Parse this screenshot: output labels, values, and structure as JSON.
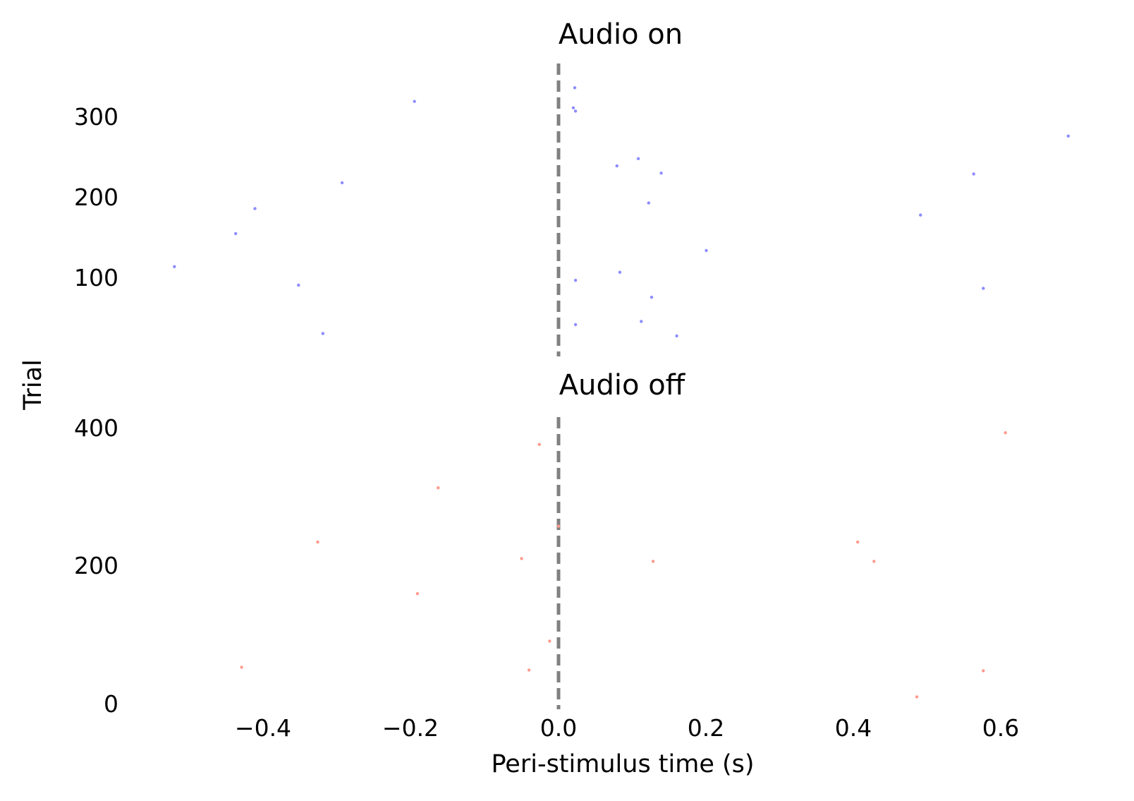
{
  "colors": {
    "audio_on": "#8c8cff",
    "audio_off": "#ff9a8c",
    "stimulus_line": "#808080"
  },
  "chart_data": [
    {
      "type": "scatter",
      "title": "Audio on",
      "xlabel": "",
      "ylabel": "",
      "xlim": [
        -0.55,
        0.72
      ],
      "ylim": [
        0,
        345
      ],
      "yticks": [
        "100",
        "200",
        "300"
      ],
      "grid": false,
      "vline_x": 0.0,
      "points": [
        {
          "x": 0.022,
          "y": 336
        },
        {
          "x": -0.195,
          "y": 319
        },
        {
          "x": 0.02,
          "y": 311
        },
        {
          "x": 0.023,
          "y": 307
        },
        {
          "x": 0.69,
          "y": 276
        },
        {
          "x": 0.108,
          "y": 248
        },
        {
          "x": 0.079,
          "y": 239
        },
        {
          "x": 0.139,
          "y": 230
        },
        {
          "x": 0.562,
          "y": 229
        },
        {
          "x": -0.293,
          "y": 218
        },
        {
          "x": 0.122,
          "y": 193
        },
        {
          "x": -0.411,
          "y": 186
        },
        {
          "x": 0.49,
          "y": 178
        },
        {
          "x": -0.437,
          "y": 155
        },
        {
          "x": 0.2,
          "y": 134
        },
        {
          "x": -0.52,
          "y": 114
        },
        {
          "x": 0.083,
          "y": 107
        },
        {
          "x": 0.023,
          "y": 97
        },
        {
          "x": -0.352,
          "y": 91
        },
        {
          "x": 0.575,
          "y": 87
        },
        {
          "x": 0.126,
          "y": 76
        },
        {
          "x": 0.112,
          "y": 46
        },
        {
          "x": 0.023,
          "y": 42
        },
        {
          "x": -0.319,
          "y": 31
        },
        {
          "x": 0.16,
          "y": 28
        }
      ]
    },
    {
      "type": "scatter",
      "title": "Audio off",
      "xlabel": "Peri-stimulus time (s)",
      "ylabel": "Trial",
      "xlim": [
        -0.55,
        0.72
      ],
      "ylim": [
        0,
        415
      ],
      "xticks": [
        "−0.4",
        "−0.2",
        "0.0",
        "0.2",
        "0.4",
        "0.6"
      ],
      "yticks": [
        "0",
        "200",
        "400"
      ],
      "grid": false,
      "vline_x": 0.0,
      "points": [
        {
          "x": 0.605,
          "y": 400
        },
        {
          "x": -0.026,
          "y": 383
        },
        {
          "x": -0.163,
          "y": 320
        },
        {
          "x": 0.0,
          "y": 264
        },
        {
          "x": -0.326,
          "y": 241
        },
        {
          "x": 0.405,
          "y": 241
        },
        {
          "x": -0.05,
          "y": 217
        },
        {
          "x": 0.128,
          "y": 213
        },
        {
          "x": 0.427,
          "y": 213
        },
        {
          "x": -0.191,
          "y": 166
        },
        {
          "x": -0.012,
          "y": 97
        },
        {
          "x": -0.429,
          "y": 59
        },
        {
          "x": -0.04,
          "y": 55
        },
        {
          "x": 0.575,
          "y": 54
        },
        {
          "x": 0.485,
          "y": 16
        }
      ]
    }
  ]
}
